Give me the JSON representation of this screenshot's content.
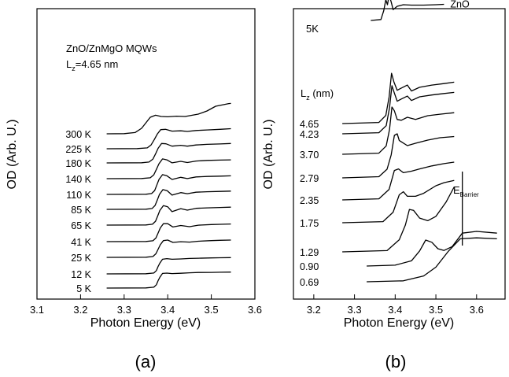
{
  "chart_data": [
    {
      "panel": "a",
      "type": "line",
      "caption": "(a)",
      "xlabel": "Photon Energy (eV)",
      "ylabel": "OD (Arb. U.)",
      "xlim": [
        3.1,
        3.6
      ],
      "xticks": [
        "3.1",
        "3.2",
        "3.3",
        "3.4",
        "3.5",
        "3.6"
      ],
      "y_ticks_numbered": false,
      "grid": false,
      "annotations": {
        "title": "ZnO/ZnMgO MQWs",
        "lz_prefix": "L",
        "lz_sub": "z",
        "lz_value": "=4.65 nm"
      },
      "series": [
        {
          "name": "5 K",
          "x": [
            3.26,
            3.35,
            3.368,
            3.374,
            3.378,
            3.382,
            3.388,
            3.398,
            3.41,
            3.43,
            3.45,
            3.47,
            3.5,
            3.52,
            3.545
          ],
          "y": [
            0.0,
            0.01,
            0.06,
            0.22,
            0.5,
            0.72,
            0.98,
            1.0,
            0.97,
            0.99,
            1.02,
            1.04,
            1.05,
            1.06,
            1.07
          ]
        },
        {
          "name": "12 K",
          "x": [
            3.26,
            3.35,
            3.368,
            3.374,
            3.378,
            3.382,
            3.388,
            3.398,
            3.41,
            3.43,
            3.45,
            3.47,
            3.5,
            3.52,
            3.545
          ],
          "y": [
            0.0,
            0.01,
            0.06,
            0.22,
            0.5,
            0.72,
            0.98,
            1.02,
            0.98,
            1.0,
            1.03,
            1.05,
            1.07,
            1.08,
            1.09
          ]
        },
        {
          "name": "25 K",
          "x": [
            3.26,
            3.35,
            3.366,
            3.373,
            3.378,
            3.383,
            3.39,
            3.4,
            3.412,
            3.43,
            3.45,
            3.47,
            3.5,
            3.52,
            3.545
          ],
          "y": [
            0.0,
            0.01,
            0.06,
            0.24,
            0.55,
            0.85,
            1.12,
            1.16,
            1.0,
            1.05,
            1.02,
            1.08,
            1.12,
            1.14,
            1.16
          ]
        },
        {
          "name": "41 K",
          "x": [
            3.26,
            3.35,
            3.366,
            3.373,
            3.378,
            3.383,
            3.39,
            3.4,
            3.412,
            3.43,
            3.45,
            3.47,
            3.5,
            3.52,
            3.545
          ],
          "y": [
            0.0,
            0.01,
            0.06,
            0.24,
            0.58,
            0.92,
            1.2,
            1.2,
            0.98,
            1.08,
            1.0,
            1.1,
            1.14,
            1.16,
            1.18
          ]
        },
        {
          "name": "65 K",
          "x": [
            3.26,
            3.35,
            3.365,
            3.372,
            3.377,
            3.382,
            3.39,
            3.4,
            3.41,
            3.43,
            3.445,
            3.465,
            3.49,
            3.52,
            3.545
          ],
          "y": [
            0.0,
            0.01,
            0.06,
            0.26,
            0.62,
            0.98,
            1.3,
            1.22,
            0.9,
            1.1,
            1.0,
            1.12,
            1.15,
            1.18,
            1.2
          ]
        },
        {
          "name": "85 K",
          "x": [
            3.26,
            3.35,
            3.364,
            3.371,
            3.376,
            3.381,
            3.389,
            3.399,
            3.41,
            3.43,
            3.445,
            3.465,
            3.49,
            3.52,
            3.545
          ],
          "y": [
            0.0,
            0.01,
            0.06,
            0.26,
            0.62,
            1.0,
            1.32,
            1.24,
            0.95,
            1.12,
            1.05,
            1.15,
            1.18,
            1.2,
            1.22
          ]
        },
        {
          "name": "110 K",
          "x": [
            3.26,
            3.35,
            3.363,
            3.37,
            3.375,
            3.38,
            3.388,
            3.398,
            3.41,
            3.43,
            3.445,
            3.465,
            3.49,
            3.52,
            3.545
          ],
          "y": [
            0.0,
            0.01,
            0.06,
            0.26,
            0.62,
            1.0,
            1.32,
            1.25,
            1.0,
            1.14,
            1.06,
            1.17,
            1.2,
            1.22,
            1.24
          ]
        },
        {
          "name": "140 K",
          "x": [
            3.26,
            3.34,
            3.36,
            3.368,
            3.374,
            3.38,
            3.388,
            3.398,
            3.41,
            3.43,
            3.445,
            3.465,
            3.49,
            3.52,
            3.545
          ],
          "y": [
            0.0,
            0.01,
            0.06,
            0.26,
            0.62,
            1.0,
            1.32,
            1.26,
            1.06,
            1.16,
            1.08,
            1.18,
            1.22,
            1.24,
            1.26
          ]
        },
        {
          "name": "180 K",
          "x": [
            3.26,
            3.34,
            3.357,
            3.366,
            3.372,
            3.378,
            3.386,
            3.396,
            3.41,
            3.43,
            3.445,
            3.465,
            3.49,
            3.52,
            3.545
          ],
          "y": [
            0.0,
            0.01,
            0.06,
            0.26,
            0.6,
            0.98,
            1.3,
            1.28,
            1.12,
            1.18,
            1.12,
            1.2,
            1.24,
            1.27,
            1.3
          ]
        },
        {
          "name": "225 K",
          "x": [
            3.26,
            3.33,
            3.353,
            3.362,
            3.369,
            3.376,
            3.384,
            3.395,
            3.41,
            3.43,
            3.445,
            3.465,
            3.49,
            3.52,
            3.545
          ],
          "y": [
            0.0,
            0.01,
            0.06,
            0.26,
            0.6,
            0.98,
            1.28,
            1.3,
            1.18,
            1.2,
            1.16,
            1.22,
            1.26,
            1.3,
            1.34
          ]
        },
        {
          "name": "300 K",
          "x": [
            3.26,
            3.3,
            3.325,
            3.34,
            3.35,
            3.36,
            3.372,
            3.385,
            3.4,
            3.42,
            3.44,
            3.47,
            3.49,
            3.51,
            3.54,
            3.545
          ],
          "y": [
            0.0,
            0.01,
            0.08,
            0.35,
            0.7,
            1.05,
            1.18,
            1.1,
            1.08,
            1.12,
            1.1,
            1.25,
            1.45,
            1.75,
            1.92,
            1.93
          ]
        }
      ]
    },
    {
      "panel": "b",
      "type": "line",
      "caption": "(b)",
      "xlabel": "Photon Energy (eV)",
      "ylabel": "OD (Arb. U.)",
      "xlim": [
        3.15,
        3.67
      ],
      "xticks": [
        "3.2",
        "3.3",
        "3.4",
        "3.5",
        "3.6"
      ],
      "y_ticks_numbered": false,
      "grid": false,
      "annotations": {
        "temperature": "5K",
        "lz_prefix": "L",
        "lz_sub": "z",
        "lz_suffix": " (nm)",
        "barrier_prefix": "E",
        "barrier_sub": "Barrier",
        "barrier_x": 3.565
      },
      "series": [
        {
          "name": "0.69",
          "x": [
            3.33,
            3.42,
            3.47,
            3.5,
            3.53,
            3.56,
            3.6,
            3.65
          ],
          "y": [
            0.0,
            0.02,
            0.12,
            0.3,
            0.62,
            0.88,
            0.9,
            0.88
          ]
        },
        {
          "name": "0.90",
          "x": [
            3.33,
            3.4,
            3.44,
            3.46,
            3.475,
            3.49,
            3.505,
            3.52,
            3.54,
            3.565,
            3.6,
            3.65
          ],
          "y": [
            0.0,
            0.02,
            0.12,
            0.35,
            0.6,
            0.55,
            0.4,
            0.36,
            0.45,
            0.76,
            0.8,
            0.76
          ]
        },
        {
          "name": "1.29",
          "x": [
            3.27,
            3.38,
            3.41,
            3.425,
            3.435,
            3.445,
            3.46,
            3.48,
            3.5,
            3.525,
            3.545
          ],
          "y": [
            0.0,
            0.03,
            0.28,
            0.62,
            0.98,
            0.96,
            0.78,
            0.72,
            0.82,
            1.15,
            1.5
          ]
        },
        {
          "name": "1.75",
          "x": [
            3.27,
            3.37,
            3.395,
            3.41,
            3.42,
            3.43,
            3.45,
            3.47,
            3.5,
            3.52,
            3.545
          ],
          "y": [
            0.0,
            0.03,
            0.28,
            0.74,
            0.82,
            0.7,
            0.7,
            0.78,
            0.98,
            1.06,
            1.12
          ]
        },
        {
          "name": "2.35",
          "x": [
            3.27,
            3.36,
            3.385,
            3.398,
            3.408,
            3.42,
            3.44,
            3.46,
            3.49,
            3.52,
            3.545
          ],
          "y": [
            0.0,
            0.03,
            0.28,
            0.78,
            0.82,
            0.72,
            0.76,
            0.82,
            0.9,
            0.96,
            1.0
          ]
        },
        {
          "name": "2.79",
          "x": [
            3.27,
            3.36,
            3.38,
            3.39,
            3.398,
            3.405,
            3.41,
            3.43,
            3.45,
            3.48,
            3.51,
            3.545
          ],
          "y": [
            0.0,
            0.03,
            0.22,
            0.58,
            1.08,
            1.12,
            0.95,
            0.82,
            0.88,
            0.96,
            1.02,
            1.05
          ]
        },
        {
          "name": "3.70",
          "x": [
            3.27,
            3.36,
            3.378,
            3.386,
            3.392,
            3.398,
            3.405,
            3.415,
            3.43,
            3.45,
            3.48,
            3.51,
            3.545
          ],
          "y": [
            0.0,
            0.03,
            0.22,
            0.65,
            1.25,
            1.15,
            0.92,
            0.9,
            0.98,
            0.92,
            1.02,
            1.06,
            1.1
          ]
        },
        {
          "name": "4.23",
          "x": [
            3.27,
            3.36,
            3.378,
            3.386,
            3.392,
            3.398,
            3.405,
            3.415,
            3.43,
            3.44,
            3.46,
            3.49,
            3.52,
            3.545
          ],
          "y": [
            0.0,
            0.03,
            0.22,
            0.7,
            1.3,
            1.1,
            0.88,
            0.94,
            1.02,
            0.9,
            1.0,
            1.05,
            1.09,
            1.12
          ]
        },
        {
          "name": "4.65",
          "x": [
            3.27,
            3.36,
            3.377,
            3.385,
            3.391,
            3.397,
            3.405,
            3.415,
            3.43,
            3.44,
            3.46,
            3.49,
            3.52,
            3.545
          ],
          "y": [
            0.0,
            0.03,
            0.22,
            0.72,
            1.36,
            1.12,
            0.9,
            0.96,
            1.04,
            0.88,
            0.98,
            1.04,
            1.08,
            1.12
          ]
        },
        {
          "name": "ZnO",
          "x": [
            3.34,
            3.365,
            3.372,
            3.377,
            3.381,
            3.385,
            3.39,
            3.395,
            3.405,
            3.42,
            3.44,
            3.47,
            3.5,
            3.52
          ],
          "y": [
            0.0,
            0.05,
            0.5,
            1.05,
            0.8,
            1.28,
            0.95,
            0.55,
            0.72,
            0.8,
            0.78,
            0.78,
            0.8,
            0.82
          ]
        }
      ]
    }
  ]
}
